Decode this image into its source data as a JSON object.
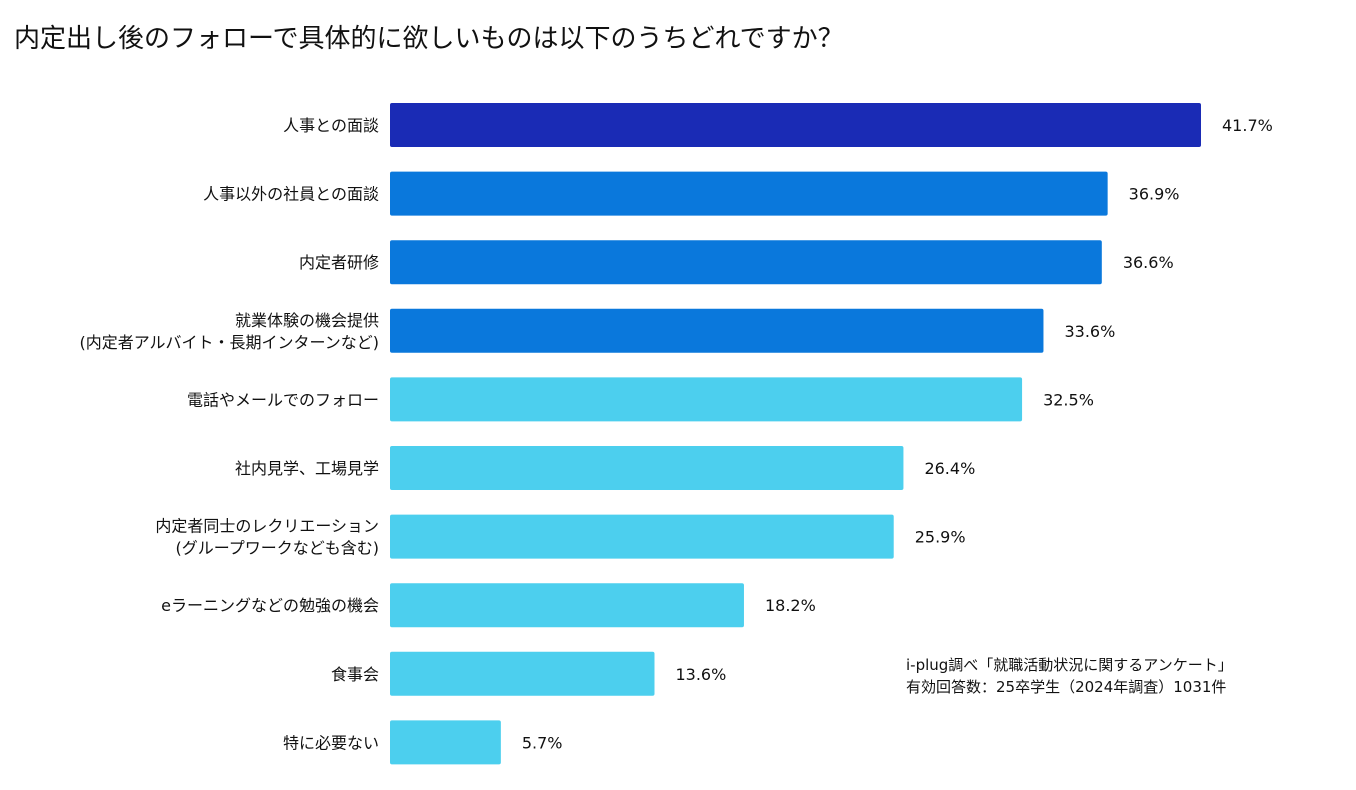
{
  "chart_data": {
    "type": "bar",
    "orientation": "horizontal",
    "title": "内定出し後のフォローで具体的に欲しいものは以下のうちどれですか？",
    "categories": [
      [
        "人事との面談"
      ],
      [
        "人事以外の社員との面談"
      ],
      [
        "内定者研修"
      ],
      [
        "就業体験の機会提供",
        "(内定者アルバイト・長期インターンなど)"
      ],
      [
        "電話やメールでのフォロー"
      ],
      [
        "社内見学、工場見学"
      ],
      [
        "内定者同士のレクリエーション",
        "(グループワークなども含む)"
      ],
      [
        "eラーニングなどの勉強の機会"
      ],
      [
        "食事会"
      ],
      [
        "特に必要ない"
      ]
    ],
    "values": [
      41.7,
      36.9,
      36.6,
      33.6,
      32.5,
      26.4,
      25.9,
      18.2,
      13.6,
      5.7
    ],
    "value_labels": [
      "41.7%",
      "36.9%",
      "36.6%",
      "33.6%",
      "32.5%",
      "26.4%",
      "25.9%",
      "18.2%",
      "13.6%",
      "5.7%"
    ],
    "colors": [
      "#1a2bb5",
      "#0a78dc",
      "#0a78dc",
      "#0a78dc",
      "#4ccfee",
      "#4ccfee",
      "#4ccfee",
      "#4ccfee",
      "#4ccfee",
      "#4ccfee"
    ],
    "xlim": [
      0,
      41.7
    ],
    "grid": false,
    "xlabel": "",
    "ylabel": ""
  },
  "source": {
    "line1": "i-plug調べ「就職活動状況に関するアンケート」",
    "line2": "有効回答数：25卒学生（2024年調査）1031件"
  }
}
